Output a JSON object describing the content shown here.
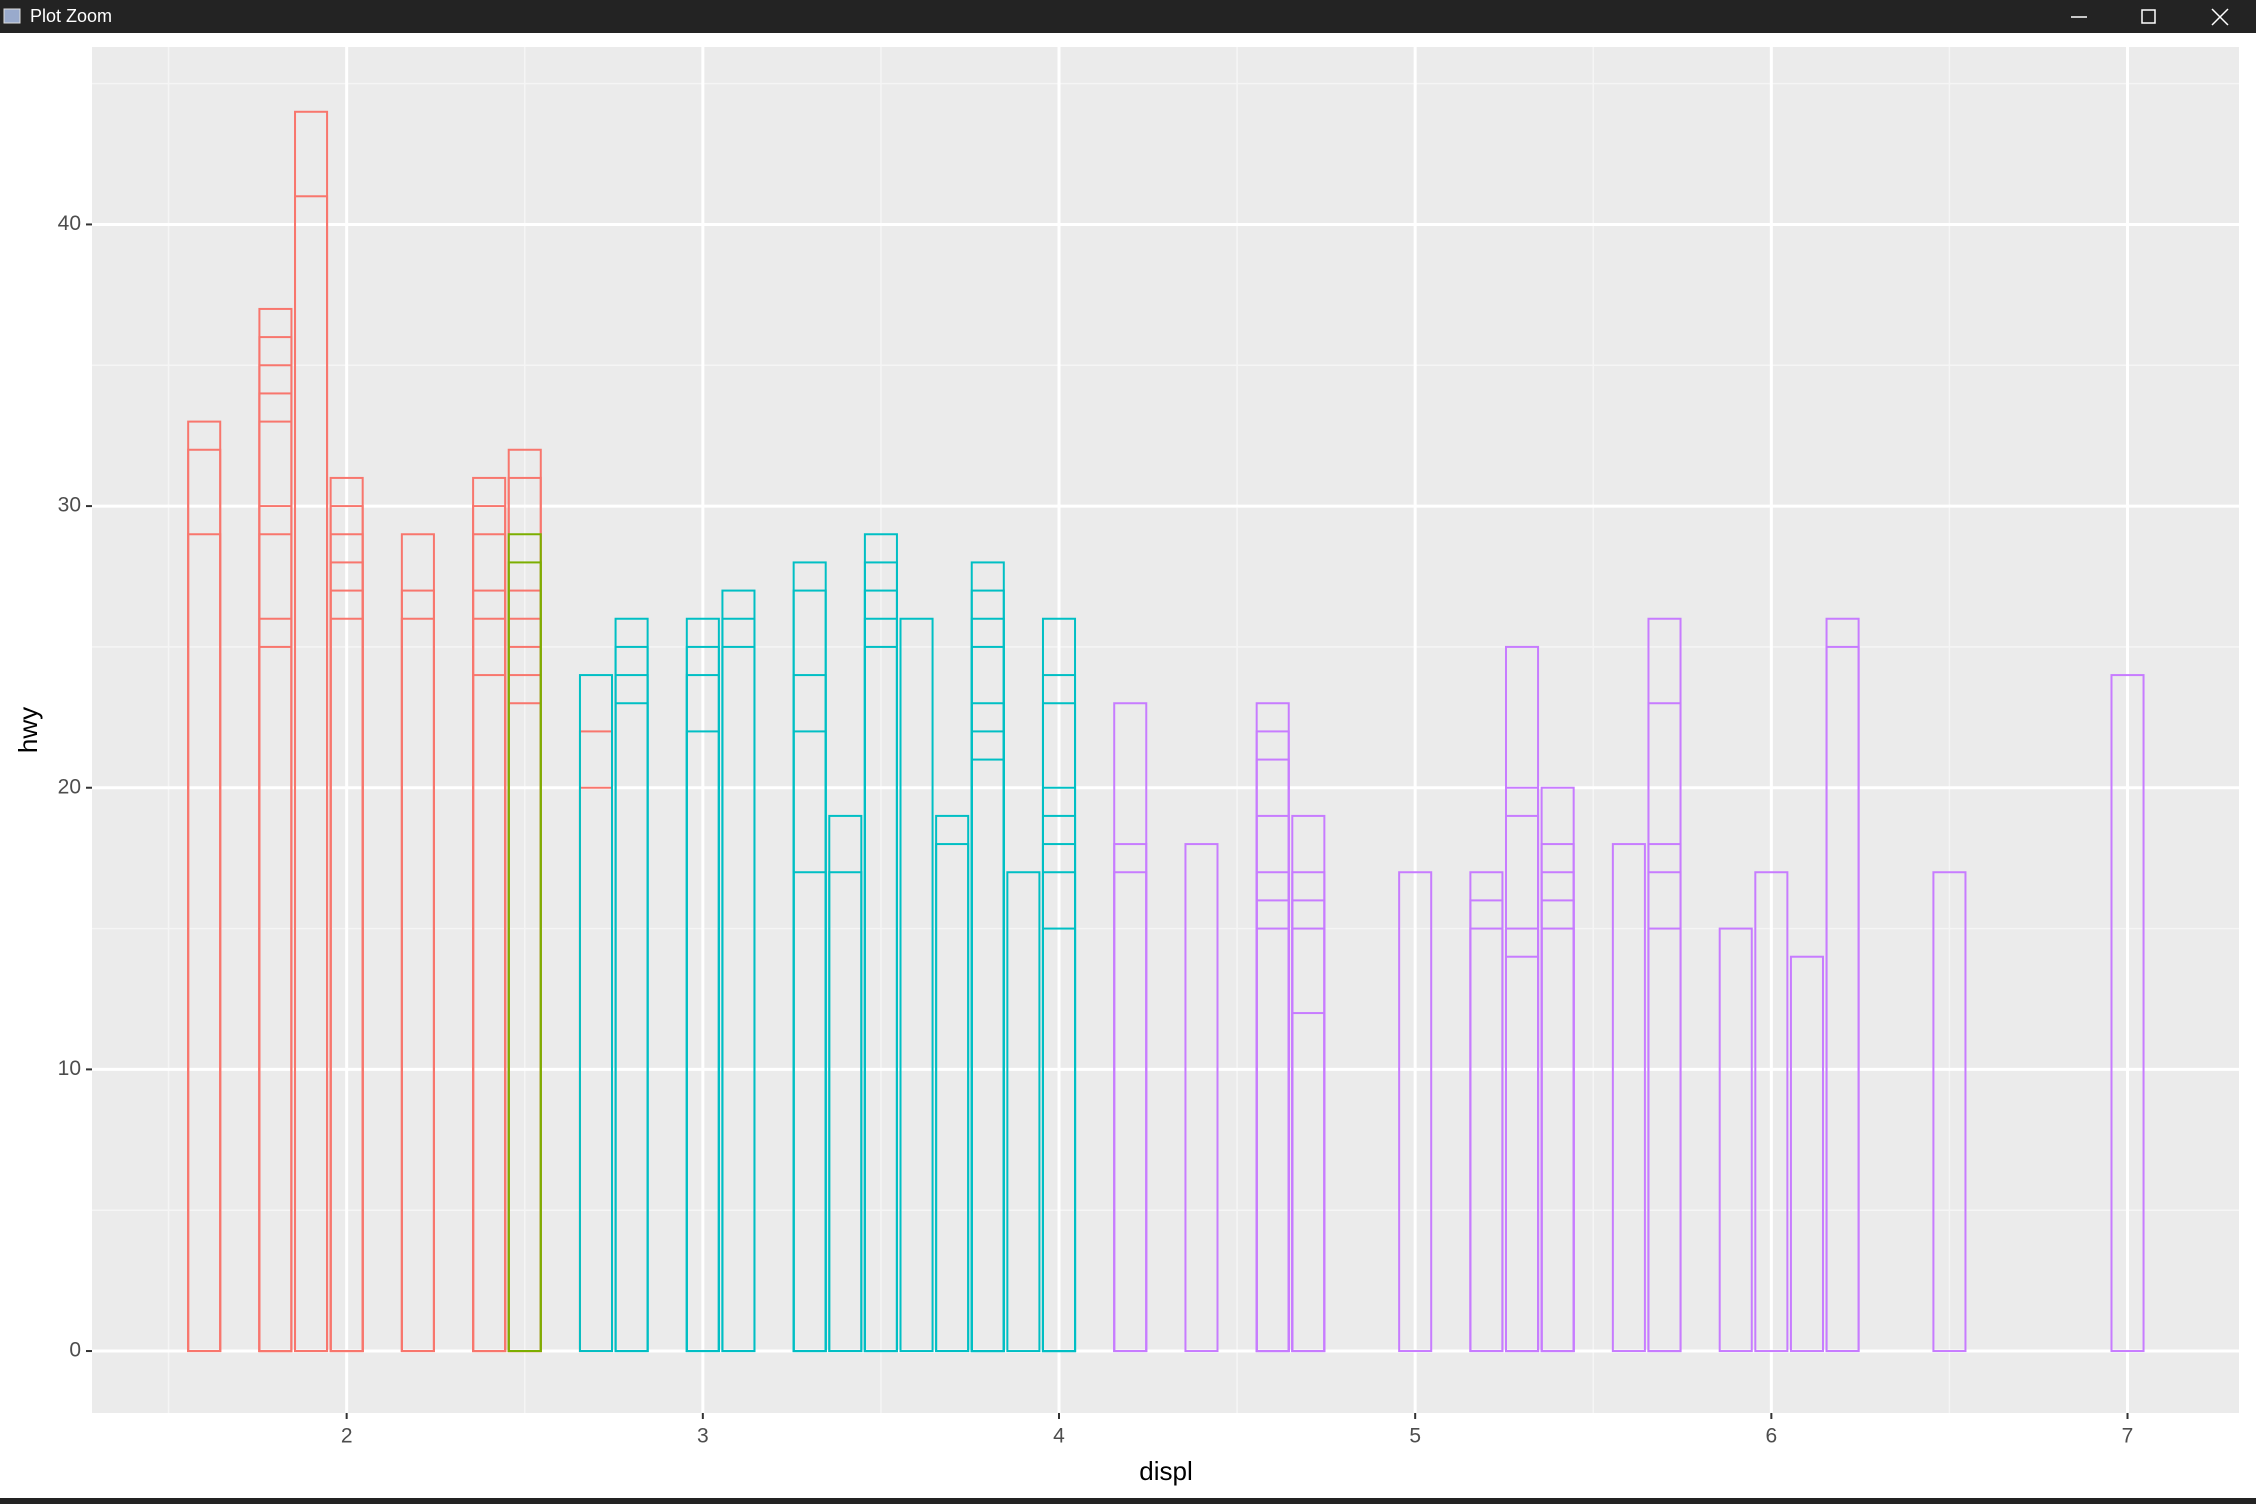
{
  "window_title": "Plot Zoom",
  "chart_data": {
    "type": "bar",
    "x_label": "displ",
    "y_label": "hwy",
    "xlim": [
      1.285,
      7.313
    ],
    "ylim": [
      -2.2,
      46.3
    ],
    "xticks": [
      2,
      3,
      4,
      5,
      6,
      7
    ],
    "yticks": [
      0,
      10,
      20,
      30,
      40
    ],
    "grid": true,
    "series": [
      {
        "color": "#F8766D",
        "x": [
          1.6,
          1.6,
          1.6,
          1.8,
          1.8,
          1.8,
          1.8,
          1.8,
          1.8,
          1.8,
          1.8,
          1.8,
          1.9,
          1.9,
          2.0,
          2.0,
          2.0,
          2.0,
          2.0,
          2.0,
          2.2,
          2.2,
          2.2,
          2.4,
          2.4,
          2.4,
          2.4,
          2.4,
          2.4,
          2.5,
          2.5,
          2.5,
          2.5,
          2.5,
          2.5,
          2.5,
          2.7,
          2.7
        ],
        "values": [
          33,
          32,
          29,
          37,
          36,
          35,
          34,
          33,
          30,
          29,
          26,
          25,
          44,
          41,
          31,
          30,
          29,
          28,
          27,
          26,
          29,
          27,
          26,
          31,
          30,
          29,
          27,
          26,
          24,
          32,
          31,
          27,
          26,
          25,
          24,
          23,
          22,
          20
        ]
      },
      {
        "color": "#7CAE00",
        "x": [
          2.5,
          2.5
        ],
        "values": [
          29,
          28
        ]
      },
      {
        "color": "#00BFC4",
        "x": [
          2.7,
          2.8,
          2.8,
          2.8,
          2.8,
          3.0,
          3.0,
          3.0,
          3.0,
          3.1,
          3.1,
          3.1,
          3.3,
          3.3,
          3.3,
          3.3,
          3.3,
          3.4,
          3.4,
          3.5,
          3.5,
          3.5,
          3.5,
          3.5,
          3.6,
          3.7,
          3.7,
          3.8,
          3.8,
          3.8,
          3.8,
          3.8,
          3.8,
          3.8,
          3.9,
          4.0,
          4.0,
          4.0,
          4.0,
          4.0,
          4.0,
          4.0,
          4.0
        ],
        "values": [
          24,
          26,
          25,
          24,
          23,
          26,
          25,
          24,
          22,
          27,
          26,
          25,
          28,
          27,
          24,
          22,
          17,
          19,
          17,
          29,
          28,
          27,
          26,
          25,
          26,
          19,
          18,
          28,
          27,
          26,
          25,
          23,
          22,
          21,
          17,
          26,
          24,
          23,
          20,
          19,
          18,
          17,
          15
        ]
      },
      {
        "color": "#C77CFF",
        "x": [
          4.2,
          4.2,
          4.2,
          4.4,
          4.6,
          4.6,
          4.6,
          4.6,
          4.6,
          4.6,
          4.6,
          4.7,
          4.7,
          4.7,
          4.7,
          4.7,
          5.0,
          5.2,
          5.2,
          5.2,
          5.3,
          5.3,
          5.3,
          5.3,
          5.3,
          5.4,
          5.4,
          5.4,
          5.4,
          5.4,
          5.6,
          5.7,
          5.7,
          5.7,
          5.7,
          5.7,
          5.9,
          6.0,
          6.1,
          6.2,
          6.2,
          6.5,
          7.0
        ],
        "values": [
          23,
          18,
          17,
          18,
          23,
          22,
          21,
          19,
          17,
          16,
          15,
          19,
          17,
          16,
          15,
          12,
          17,
          17,
          16,
          15,
          25,
          20,
          19,
          15,
          14,
          20,
          18,
          17,
          16,
          15,
          18,
          26,
          23,
          18,
          17,
          15,
          15,
          17,
          14,
          26,
          25,
          17,
          24
        ]
      }
    ]
  }
}
